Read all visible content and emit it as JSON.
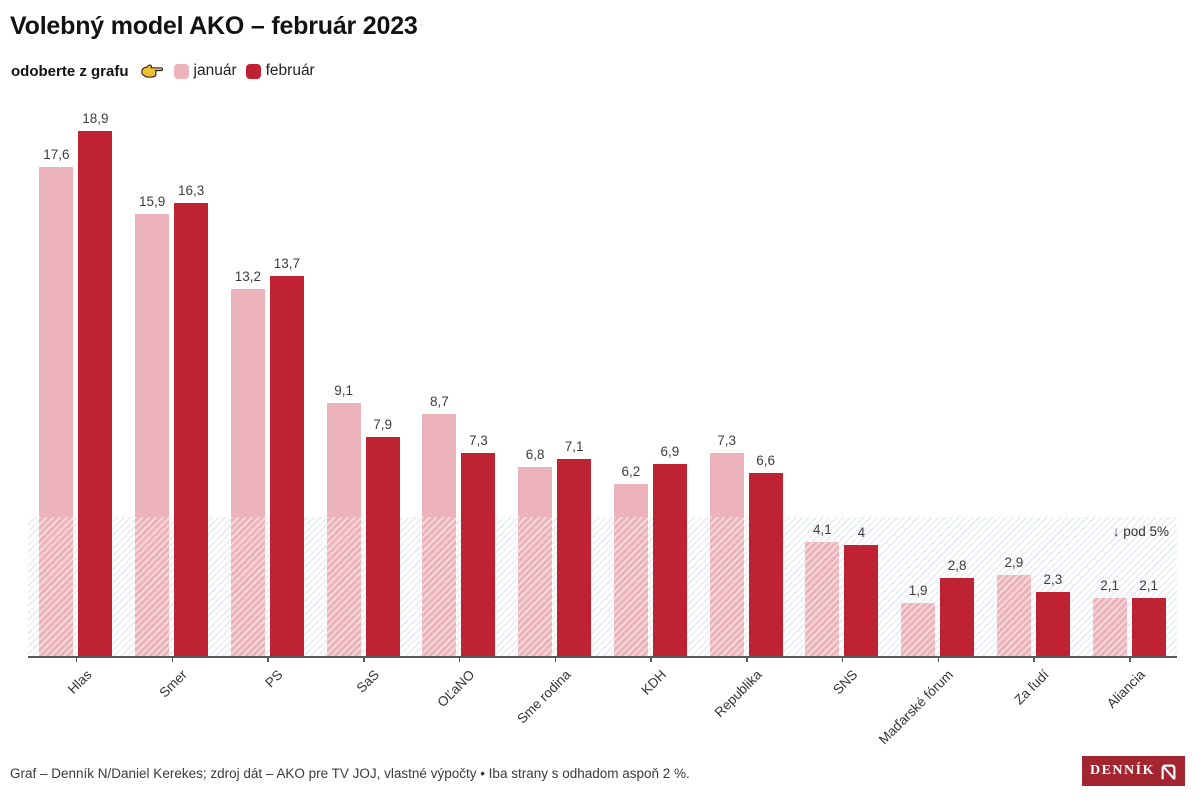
{
  "header": {
    "title": "Volebný model AKO – február 2023"
  },
  "legend": {
    "prefix": "odoberte z grafu",
    "hand_icon": "backhand-index-pointing-right-icon",
    "items": [
      {
        "label": "január",
        "color": "#ecb4ba"
      },
      {
        "label": "február",
        "color": "#bf2233"
      }
    ]
  },
  "chart_data": {
    "type": "bar",
    "title": "Volebný model AKO – február 2023",
    "categories": [
      "Hlas",
      "Smer",
      "PS",
      "SaS",
      "OĽaNO",
      "Sme rodina",
      "KDH",
      "Republika",
      "SNS",
      "Maďarské fórum",
      "Za ľudí",
      "Aliancia"
    ],
    "series": [
      {
        "name": "január",
        "color": "#ecb4ba",
        "values": [
          17.6,
          15.9,
          13.2,
          9.1,
          8.7,
          6.8,
          6.2,
          7.3,
          4.1,
          1.9,
          2.9,
          2.1
        ],
        "labels": [
          "17,6",
          "15,9",
          "13,2",
          "9,1",
          "8,7",
          "6,8",
          "6,2",
          "7,3",
          "4,1",
          "1,9",
          "2,9",
          "2,1"
        ]
      },
      {
        "name": "február",
        "color": "#bf2233",
        "values": [
          18.9,
          16.3,
          13.7,
          7.9,
          7.3,
          7.1,
          6.9,
          6.6,
          4,
          2.8,
          2.3,
          2.1
        ],
        "labels": [
          "18,9",
          "16,3",
          "13,7",
          "7,9",
          "7,3",
          "7,1",
          "6,9",
          "6,6",
          "4",
          "2,8",
          "2,3",
          "2,1"
        ]
      }
    ],
    "xlabel": "",
    "ylabel": "",
    "ylim": [
      0,
      19.3
    ],
    "grid": false,
    "legend_position": "top-left",
    "threshold": {
      "value": 5,
      "label": "↓ pod 5%"
    },
    "value_label_decimal_separator": ","
  },
  "footer": {
    "credit": "Graf – Denník N/Daniel Kerekes; zdroj dát – AKO pre TV JOJ, vlastné výpočty • Iba strany s odhadom aspoň 2 %."
  },
  "logo": {
    "wordmark": "DENNÍK",
    "mark": "N",
    "background": "#a32531"
  }
}
